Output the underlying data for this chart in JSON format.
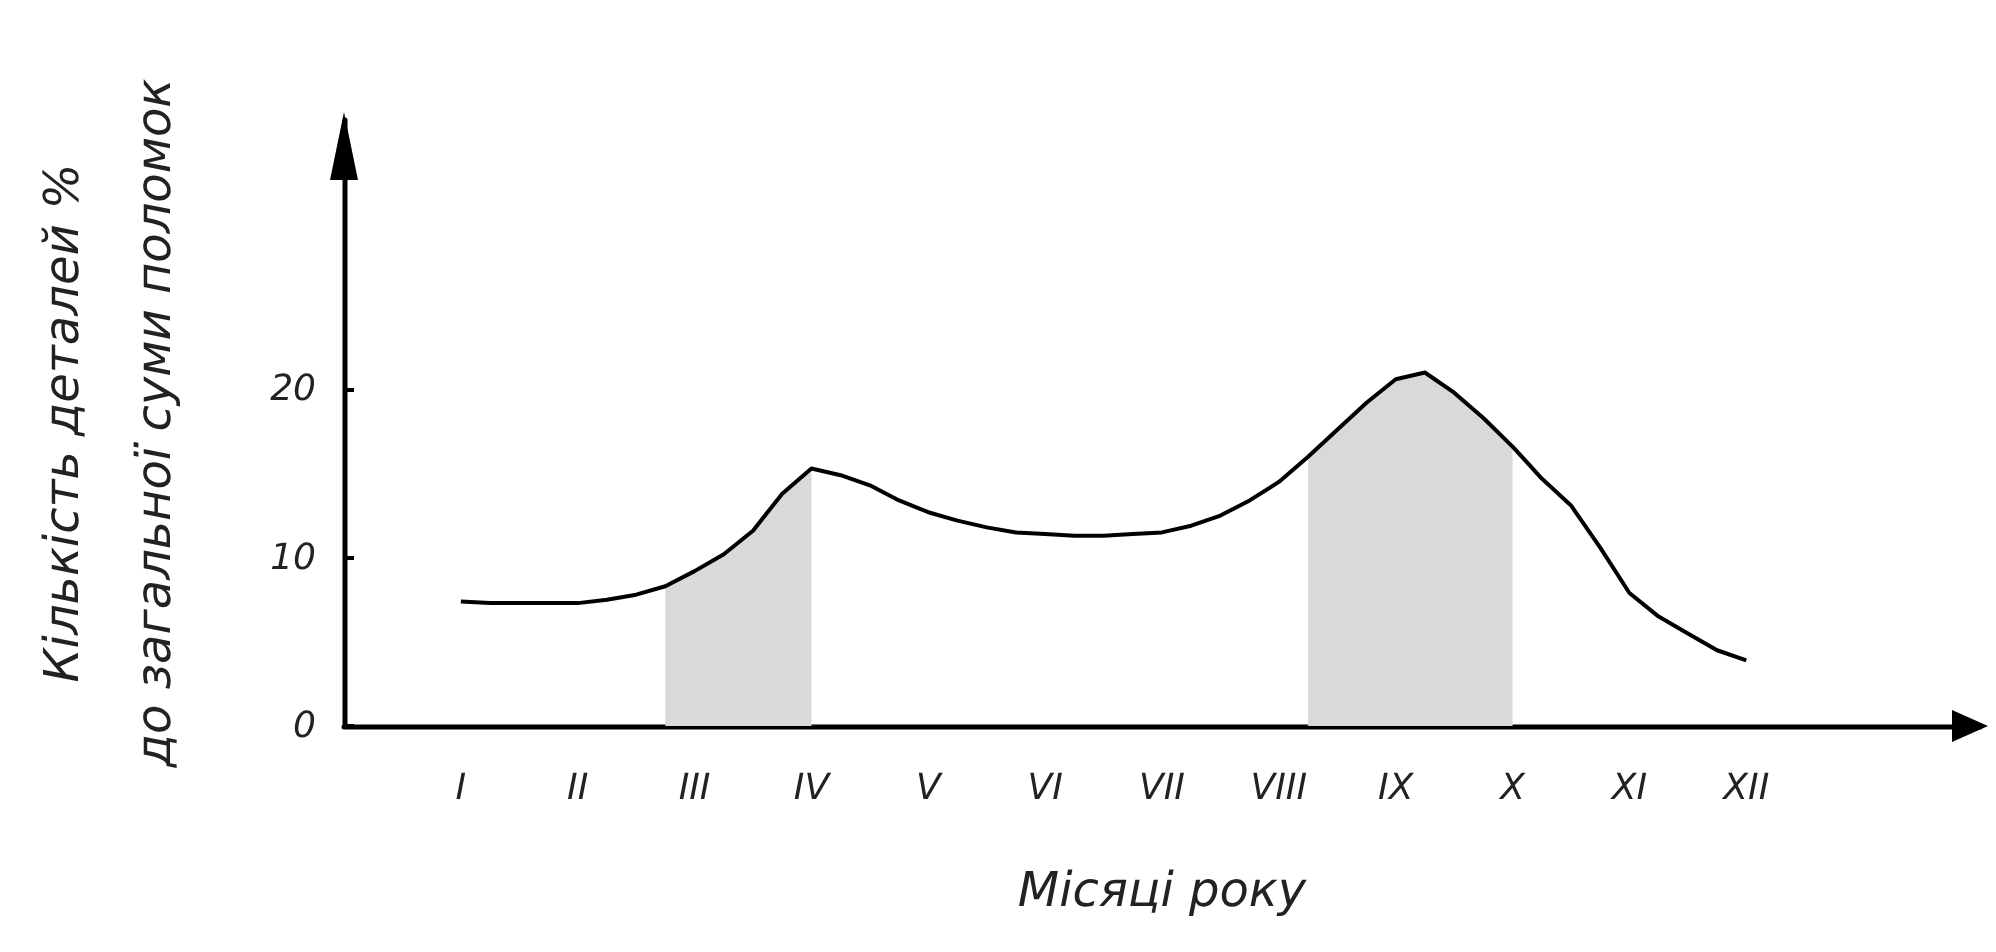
{
  "chart_data": {
    "type": "line",
    "xlabel": "Місяці року",
    "ylabel": "Кількість деталей %\nдо загальної суми поломок",
    "categories": [
      null,
      null,
      null,
      null,
      "I",
      null,
      null,
      null,
      "II",
      null,
      null,
      null,
      "III",
      null,
      null,
      null,
      "IV",
      null,
      null,
      null,
      "V",
      null,
      null,
      null,
      "VI",
      null,
      null,
      null,
      "VII",
      null,
      null,
      null,
      "VIII",
      null,
      null,
      null,
      "IX",
      null,
      null,
      null,
      "X",
      null,
      null,
      null,
      "XI",
      null,
      null,
      null,
      "XII",
      null,
      null,
      null,
      null,
      null,
      null,
      null,
      null
    ],
    "series": [
      {
        "color": "#000000",
        "values": [
          null,
          null,
          null,
          null,
          7.4,
          7.3,
          7.3,
          7.3,
          7.3,
          7.5,
          7.8,
          8.3,
          9.2,
          10.2,
          11.6,
          13.8,
          15.3,
          14.9,
          14.3,
          13.4,
          12.7,
          12.2,
          11.8,
          11.5,
          11.4,
          11.3,
          11.3,
          11.4,
          11.5,
          11.9,
          12.5,
          13.4,
          14.5,
          16.0,
          17.6,
          19.2,
          20.6,
          21.0,
          19.8,
          18.3,
          16.6,
          14.7,
          13.1,
          10.6,
          7.9,
          6.5,
          5.5,
          4.5,
          3.9,
          null,
          null,
          null,
          null,
          null,
          null,
          null,
          null
        ]
      },
      {
        "type": "area",
        "color": "#d9d9d9",
        "values": [
          null,
          null,
          null,
          null,
          null,
          null,
          null,
          null,
          null,
          null,
          null,
          8.3,
          9.2,
          10.2,
          11.6,
          13.8,
          15.3,
          null,
          null,
          null,
          null,
          null,
          null,
          null,
          null,
          null,
          null,
          null,
          null,
          null,
          null,
          null,
          null,
          null,
          null,
          null,
          null,
          null,
          null,
          null,
          null,
          null,
          null,
          null,
          null,
          null,
          null,
          null,
          null,
          null,
          null,
          null,
          null,
          null,
          null,
          null,
          null
        ]
      },
      {
        "type": "area",
        "color": "#d9d9d9",
        "values": [
          null,
          null,
          null,
          null,
          null,
          null,
          null,
          null,
          null,
          null,
          null,
          null,
          null,
          null,
          null,
          null,
          null,
          null,
          null,
          null,
          null,
          null,
          null,
          null,
          null,
          null,
          null,
          null,
          null,
          null,
          null,
          null,
          null,
          16.0,
          17.6,
          19.2,
          20.6,
          21.0,
          19.8,
          18.3,
          16.6,
          null,
          null,
          null,
          null,
          null,
          null,
          null,
          null,
          null,
          null,
          null,
          null,
          null,
          null,
          null,
          null
        ]
      }
    ],
    "marker": "none",
    "line_style": "solid",
    "ylim": [
      0,
      36
    ],
    "yticks": [
      0,
      10,
      20
    ]
  }
}
